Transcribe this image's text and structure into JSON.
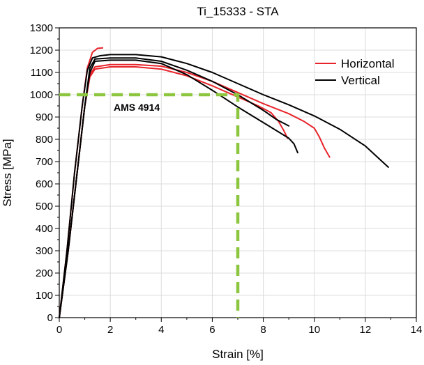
{
  "chart_data": {
    "type": "line",
    "title": "Ti_15333 - STA",
    "xlabel": "Strain [%]",
    "ylabel": "Stress [MPa]",
    "xlim": [
      0,
      14
    ],
    "ylim": [
      0,
      1300
    ],
    "xticks": [
      0,
      2,
      4,
      6,
      8,
      10,
      12,
      14
    ],
    "yticks": [
      0,
      100,
      200,
      300,
      400,
      500,
      600,
      700,
      800,
      900,
      1000,
      1100,
      1200,
      1300
    ],
    "grid": true,
    "legend_position": "top-right",
    "legend": [
      {
        "name": "Horizontal",
        "color": "#e8232a"
      },
      {
        "name": "Vertical",
        "color": "#000000"
      }
    ],
    "series": [
      {
        "group": "Horizontal",
        "color": "#e8232a",
        "points": [
          [
            0,
            0
          ],
          [
            0.3,
            300
          ],
          [
            0.6,
            650
          ],
          [
            0.9,
            950
          ],
          [
            1.1,
            1120
          ],
          [
            1.3,
            1190
          ],
          [
            1.5,
            1208
          ],
          [
            1.7,
            1210
          ]
        ]
      },
      {
        "group": "Horizontal",
        "color": "#e8232a",
        "points": [
          [
            0,
            0
          ],
          [
            0.35,
            300
          ],
          [
            0.7,
            650
          ],
          [
            1.0,
            950
          ],
          [
            1.2,
            1080
          ],
          [
            1.4,
            1115
          ],
          [
            2.0,
            1125
          ],
          [
            3.0,
            1125
          ],
          [
            4.0,
            1115
          ],
          [
            5.0,
            1085
          ],
          [
            6.0,
            1040
          ],
          [
            7.0,
            990
          ],
          [
            7.8,
            950
          ],
          [
            8.3,
            920
          ],
          [
            8.6,
            880
          ],
          [
            8.8,
            840
          ],
          [
            8.95,
            805
          ]
        ]
      },
      {
        "group": "Horizontal",
        "color": "#e8232a",
        "points": [
          [
            0,
            0
          ],
          [
            0.35,
            300
          ],
          [
            0.7,
            650
          ],
          [
            1.0,
            950
          ],
          [
            1.2,
            1090
          ],
          [
            1.4,
            1125
          ],
          [
            2.0,
            1135
          ],
          [
            3.0,
            1135
          ],
          [
            4.0,
            1128
          ],
          [
            5.0,
            1100
          ],
          [
            6.0,
            1060
          ],
          [
            7.0,
            1010
          ],
          [
            8.0,
            960
          ],
          [
            9.0,
            915
          ],
          [
            9.6,
            880
          ],
          [
            10.0,
            850
          ],
          [
            10.2,
            810
          ],
          [
            10.4,
            760
          ],
          [
            10.6,
            720
          ]
        ]
      },
      {
        "group": "Vertical",
        "color": "#000000",
        "points": [
          [
            0,
            0
          ],
          [
            0.3,
            300
          ],
          [
            0.6,
            650
          ],
          [
            0.9,
            950
          ],
          [
            1.1,
            1110
          ],
          [
            1.3,
            1165
          ],
          [
            1.6,
            1175
          ],
          [
            2.0,
            1180
          ],
          [
            3.0,
            1180
          ],
          [
            4.0,
            1170
          ],
          [
            5.0,
            1140
          ],
          [
            6.0,
            1100
          ],
          [
            7.0,
            1050
          ],
          [
            8.0,
            1000
          ],
          [
            9.0,
            955
          ],
          [
            10.0,
            905
          ],
          [
            11.0,
            845
          ],
          [
            12.0,
            770
          ],
          [
            12.9,
            675
          ]
        ]
      },
      {
        "group": "Vertical",
        "color": "#000000",
        "points": [
          [
            0,
            0
          ],
          [
            0.35,
            300
          ],
          [
            0.7,
            650
          ],
          [
            1.0,
            950
          ],
          [
            1.2,
            1120
          ],
          [
            1.4,
            1160
          ],
          [
            2.0,
            1165
          ],
          [
            3.0,
            1165
          ],
          [
            4.0,
            1150
          ],
          [
            5.0,
            1110
          ],
          [
            6.0,
            1060
          ],
          [
            7.0,
            1000
          ],
          [
            8.0,
            930
          ],
          [
            8.5,
            890
          ],
          [
            9.0,
            860
          ]
        ]
      },
      {
        "group": "Vertical",
        "color": "#000000",
        "points": [
          [
            0,
            0
          ],
          [
            0.35,
            300
          ],
          [
            0.7,
            650
          ],
          [
            1.0,
            950
          ],
          [
            1.2,
            1100
          ],
          [
            1.4,
            1150
          ],
          [
            2.0,
            1155
          ],
          [
            3.0,
            1155
          ],
          [
            4.0,
            1140
          ],
          [
            5.0,
            1090
          ],
          [
            6.0,
            1020
          ],
          [
            7.0,
            945
          ],
          [
            8.0,
            875
          ],
          [
            9.0,
            805
          ],
          [
            9.2,
            780
          ],
          [
            9.35,
            740
          ]
        ]
      }
    ],
    "annotation": {
      "label": "AMS 4914",
      "color": "#8cc63f",
      "points": [
        [
          0,
          1000
        ],
        [
          7,
          1000
        ],
        [
          7,
          0
        ]
      ]
    }
  }
}
